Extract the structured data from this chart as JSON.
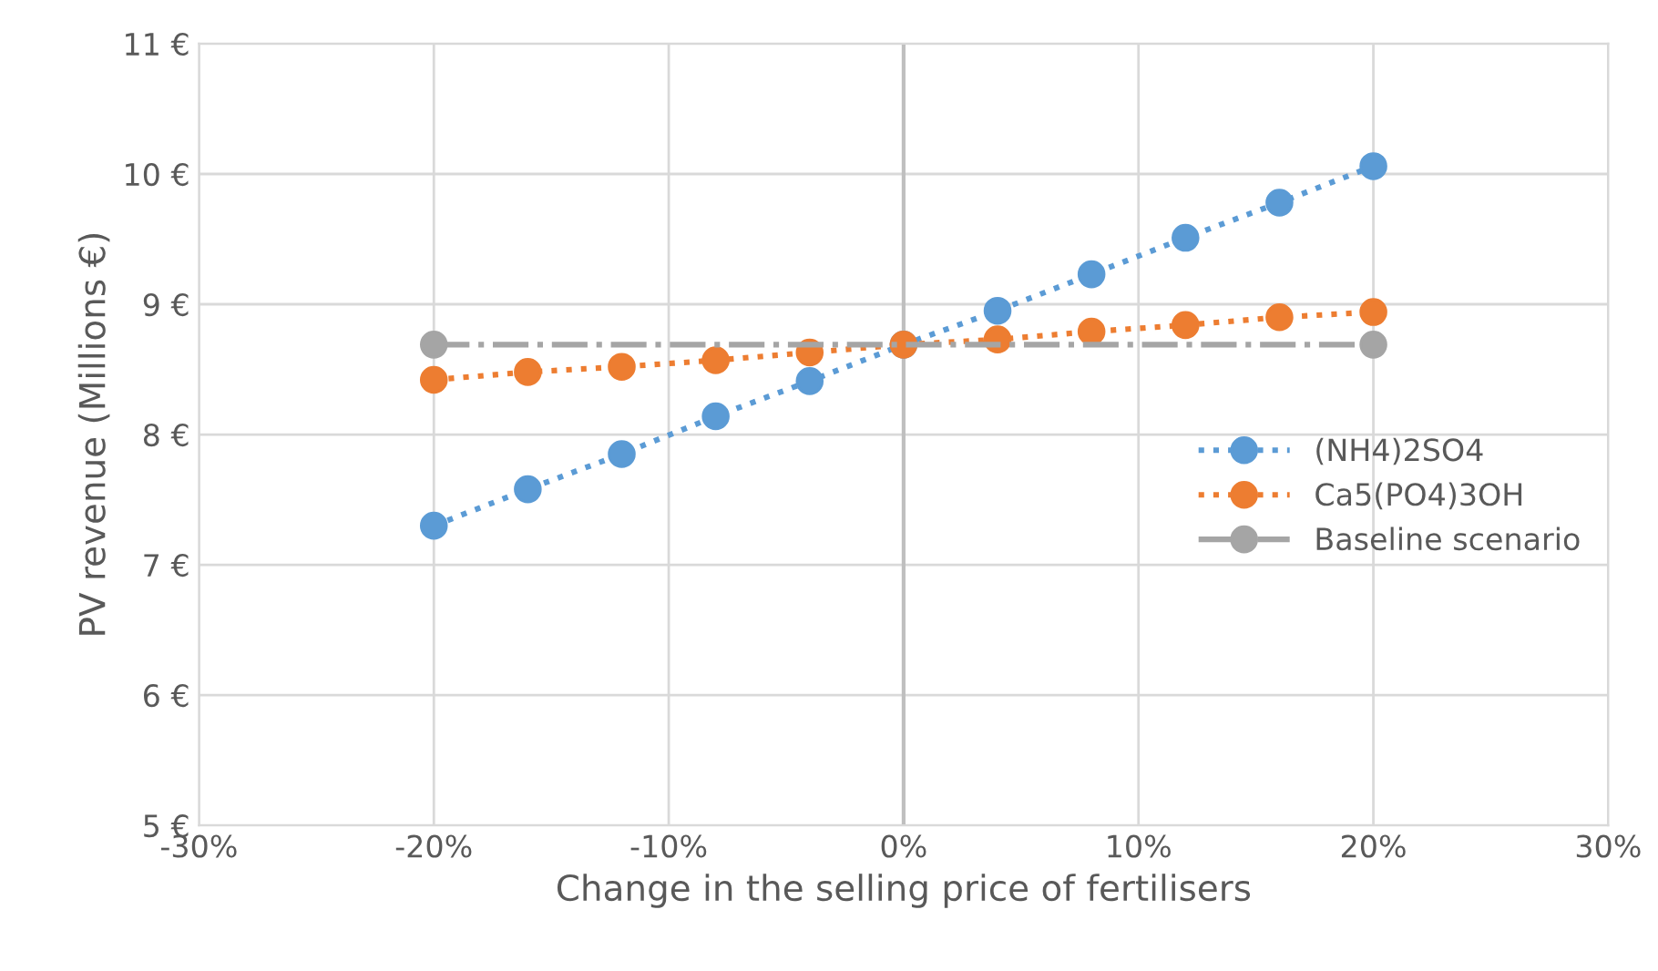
{
  "chart_data": {
    "type": "line",
    "xlabel": "Change in the selling price of fertilisers",
    "ylabel": "PV revenue (Millions €)",
    "x": [
      -20,
      -16,
      -12,
      -8,
      -4,
      0,
      4,
      8,
      12,
      16,
      20
    ],
    "series": [
      {
        "name": "(NH4)2SO4",
        "color": "#5b9bd5",
        "line_style": "dotted",
        "values": [
          7.3,
          7.58,
          7.85,
          8.14,
          8.41,
          8.69,
          8.95,
          9.23,
          9.51,
          9.78,
          10.06
        ]
      },
      {
        "name": "Ca5(PO4)3OH",
        "color": "#ed7d31",
        "line_style": "dotted",
        "values": [
          8.42,
          8.48,
          8.52,
          8.57,
          8.63,
          8.69,
          8.73,
          8.79,
          8.84,
          8.9,
          8.94
        ]
      },
      {
        "name": "Baseline scenario",
        "color": "#a5a5a5",
        "line_style": "dashed",
        "x": [
          -20,
          20
        ],
        "values": [
          8.69,
          8.69
        ]
      }
    ],
    "marker": "circle",
    "xlim": [
      -30,
      30
    ],
    "xticks": [
      {
        "value": -30,
        "label": "-30%"
      },
      {
        "value": -20,
        "label": "-20%"
      },
      {
        "value": -10,
        "label": "-10%"
      },
      {
        "value": 0,
        "label": "0%"
      },
      {
        "value": 10,
        "label": "10%"
      },
      {
        "value": 20,
        "label": "20%"
      },
      {
        "value": 30,
        "label": "30%"
      }
    ],
    "ylim": [
      5,
      11
    ],
    "yticks": [
      {
        "value": 5,
        "label": "5 €"
      },
      {
        "value": 6,
        "label": "6 €"
      },
      {
        "value": 7,
        "label": "7 €"
      },
      {
        "value": 8,
        "label": "8 €"
      },
      {
        "value": 9,
        "label": "9 €"
      },
      {
        "value": 10,
        "label": "10 €"
      },
      {
        "value": 11,
        "label": "11 €"
      }
    ],
    "ref_lines": [
      {
        "axis": "x",
        "value": 0,
        "color": "#bfbfbf"
      }
    ],
    "grid": true,
    "legend": "right"
  }
}
